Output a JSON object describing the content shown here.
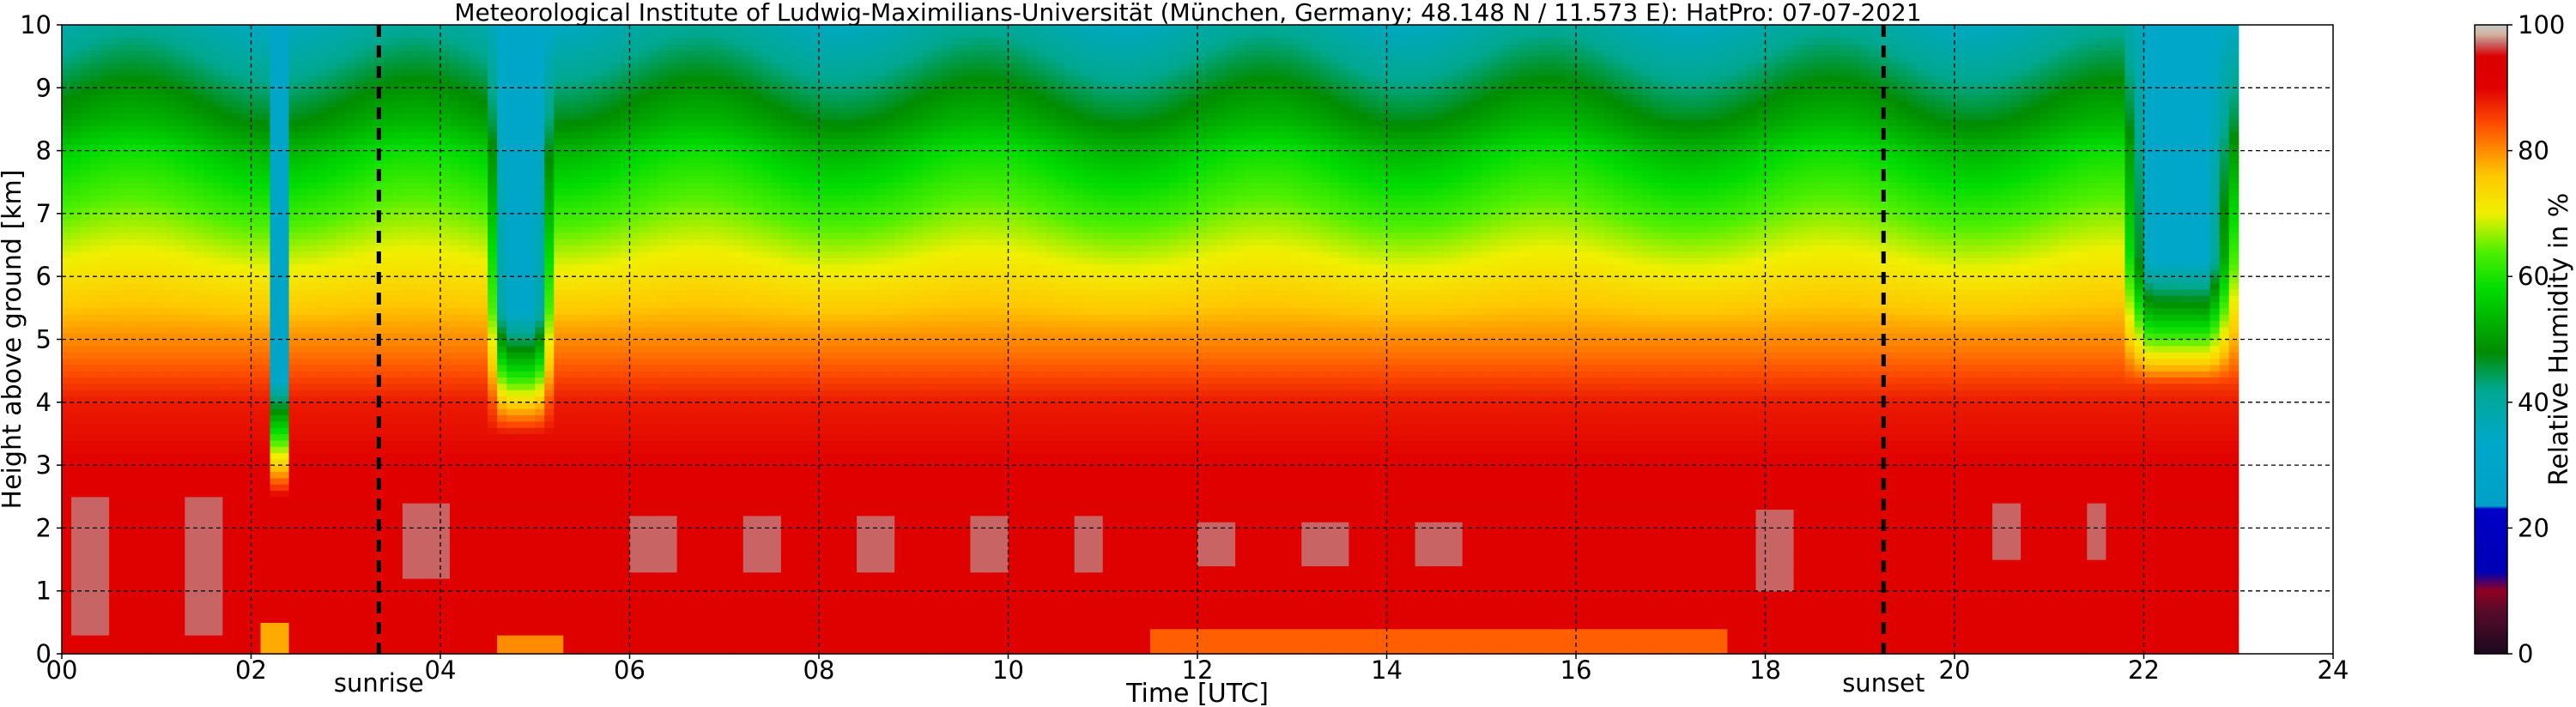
{
  "chart_data": {
    "type": "heatmap",
    "title": "Meteorological Institute of Ludwig-Maximilians-Universität (München, Germany; 48.148 N / 11.573 E):    HatPro: 07-07-2021",
    "xlabel": "Time [UTC]",
    "ylabel": "Height above ground [km]",
    "colorbar_label": "Relative Humidity in %",
    "xlim": [
      0,
      24
    ],
    "ylim": [
      0,
      10
    ],
    "x_ticks": [
      "00",
      "02",
      "04",
      "06",
      "08",
      "10",
      "12",
      "14",
      "16",
      "18",
      "20",
      "22",
      "24"
    ],
    "y_ticks": [
      "0",
      "1",
      "2",
      "3",
      "4",
      "5",
      "6",
      "7",
      "8",
      "9",
      "10"
    ],
    "colorbar_ticks": [
      "0",
      "20",
      "40",
      "60",
      "80",
      "100"
    ],
    "colorbar_range": [
      0,
      100
    ],
    "data_end_hour": 23.0,
    "grid": true,
    "annotations": [
      {
        "label": "sunrise",
        "x": 3.35
      },
      {
        "label": "sunset",
        "x": 19.25
      }
    ],
    "colormap": [
      {
        "value": 0,
        "color": "#1a0a1e"
      },
      {
        "value": 7,
        "color": "#5a0a2a"
      },
      {
        "value": 10,
        "color": "#900020"
      },
      {
        "value": 13,
        "color": "#0000b4"
      },
      {
        "value": 23,
        "color": "#0000c8"
      },
      {
        "value": 23.5,
        "color": "#00a0c8"
      },
      {
        "value": 34,
        "color": "#00a8c8"
      },
      {
        "value": 42,
        "color": "#00a890"
      },
      {
        "value": 48,
        "color": "#008c00"
      },
      {
        "value": 58,
        "color": "#00dc00"
      },
      {
        "value": 64,
        "color": "#50f000"
      },
      {
        "value": 70,
        "color": "#f0f000"
      },
      {
        "value": 76,
        "color": "#ffc800"
      },
      {
        "value": 84,
        "color": "#ff5000"
      },
      {
        "value": 90,
        "color": "#e00000"
      },
      {
        "value": 95,
        "color": "#dc0000"
      },
      {
        "value": 97,
        "color": "#c86464"
      },
      {
        "value": 98.5,
        "color": "#d2b4a0"
      },
      {
        "value": 100,
        "color": "#c8c8c8"
      }
    ],
    "rh_profile": {
      "heights_km": [
        0,
        0.3,
        1,
        2,
        3,
        3.5,
        4,
        4.5,
        5,
        5.5,
        6,
        6.5,
        7,
        7.5,
        8,
        8.5,
        9,
        9.5,
        10
      ],
      "rh_percent": [
        92,
        91,
        91,
        91,
        90,
        89,
        88,
        84,
        80,
        76,
        72,
        68,
        64,
        60,
        56,
        50,
        46,
        42,
        38
      ]
    },
    "dry_intrusions": [
      {
        "x_start": 2.15,
        "x_end": 2.45,
        "top_rh": 30,
        "bottom_km": 2.5
      },
      {
        "x_start": 4.5,
        "x_end": 5.2,
        "top_rh": 32,
        "bottom_km": 3.5
      },
      {
        "x_start": 21.75,
        "x_end": 23.0,
        "top_rh": 33,
        "bottom_km": 4.3
      }
    ],
    "moist_layers": [
      {
        "x_start": 0.0,
        "x_end": 2.0,
        "km_bottom": 0.3,
        "km_top": 2.5,
        "rh": 97
      },
      {
        "x_start": 3.0,
        "x_end": 4.3,
        "km_bottom": 1.2,
        "km_top": 2.4,
        "rh": 97
      },
      {
        "x_start": 5.3,
        "x_end": 11.0,
        "km_bottom": 1.3,
        "km_top": 2.2,
        "rh": 97
      },
      {
        "x_start": 12.0,
        "x_end": 15.0,
        "km_bottom": 1.4,
        "km_top": 2.1,
        "rh": 97
      },
      {
        "x_start": 17.6,
        "x_end": 18.3,
        "km_bottom": 1.0,
        "km_top": 2.3,
        "rh": 97
      },
      {
        "x_start": 20.4,
        "x_end": 21.6,
        "km_bottom": 1.5,
        "km_top": 2.4,
        "rh": 97
      }
    ],
    "surface_dry_layers": [
      {
        "x_start": 4.6,
        "x_end": 5.3,
        "km_top": 0.35,
        "rh": 80
      },
      {
        "x_start": 11.5,
        "x_end": 17.6,
        "km_top": 0.4,
        "rh": 83
      },
      {
        "x_start": 2.15,
        "x_end": 2.45,
        "km_top": 0.5,
        "rh": 78
      }
    ]
  }
}
